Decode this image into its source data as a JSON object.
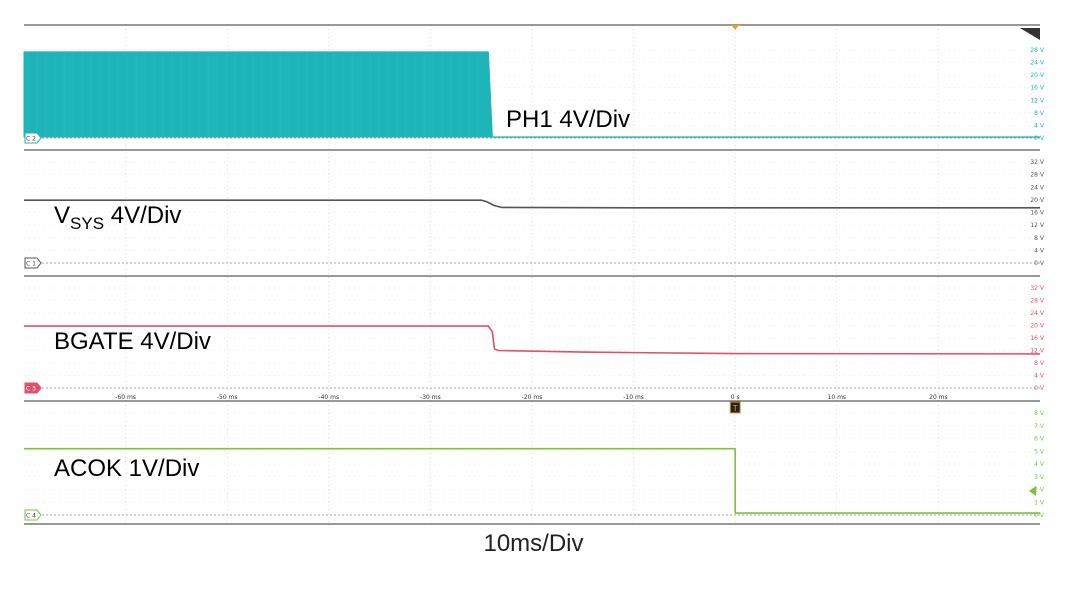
{
  "colors": {
    "c1": "#555555",
    "c2": "#1fb5b8",
    "c3": "#e0506a",
    "c4": "#7cc142",
    "trigger": "#e8a02f",
    "frame": "#333333"
  },
  "timebase_label": "10ms/Div",
  "chart_data": {
    "type": "line",
    "title": "",
    "xlabel": "10ms/Div",
    "xunit": "ms",
    "xlim": [
      -70,
      30
    ],
    "x_ticks": [
      -60,
      -50,
      -40,
      -30,
      -20,
      -10,
      0,
      10,
      20
    ],
    "x_tick_labels": [
      "-60 ms",
      "-50 ms",
      "-40 ms",
      "-30 ms",
      "-20 ms",
      "-10 ms",
      "0 s",
      "10 ms",
      "20 ms"
    ],
    "trigger_time": 0,
    "trigger_marker": "T",
    "grid": true,
    "channels": [
      {
        "id": "C2",
        "badge": "C 2",
        "label": "PH1 4V/Div",
        "label_main": "PH1 4V/Div",
        "label_sub": "",
        "color_key": "c2",
        "style": "switching",
        "ylim": [
          0,
          32
        ],
        "y_tick_values": [
          0,
          4,
          8,
          12,
          16,
          20,
          24,
          28
        ],
        "y_tick_labels": [
          "0 V",
          "4 V",
          "8 V",
          "12 V",
          "16 V",
          "20 V",
          "24 V",
          "28 V"
        ],
        "switching_high": 27.4,
        "switching_low": 0.3,
        "switching_end": -24.1,
        "points": [
          [
            -70,
            0.3
          ],
          [
            -24.1,
            0.3
          ],
          [
            -20,
            0.3
          ],
          [
            30,
            0.3
          ]
        ]
      },
      {
        "id": "C1",
        "badge": "C 1",
        "label": "VSYS 4V/Div",
        "label_main": "V",
        "label_sub": "SYS",
        "label_rest": " 4V/Div",
        "color_key": "c1",
        "style": "line",
        "ylim": [
          0,
          34
        ],
        "y_tick_values": [
          0,
          4,
          8,
          12,
          16,
          20,
          24,
          28,
          32
        ],
        "y_tick_labels": [
          "0 V",
          "4 V",
          "8 V",
          "12 V",
          "16 V",
          "20 V",
          "24 V",
          "28 V",
          "32 V"
        ],
        "points": [
          [
            -70,
            19.9
          ],
          [
            -25,
            19.9
          ],
          [
            -24.5,
            19.5
          ],
          [
            -23.7,
            18.2
          ],
          [
            -23,
            17.6
          ],
          [
            -10,
            17.5
          ],
          [
            30,
            17.5
          ]
        ]
      },
      {
        "id": "C3",
        "badge": "C 3",
        "label": "BGATE 4V/Div",
        "label_main": "BGATE 4V/Div",
        "label_sub": "",
        "color_key": "c3",
        "style": "line",
        "ylim": [
          0,
          34
        ],
        "y_tick_values": [
          0,
          4,
          8,
          12,
          16,
          20,
          24,
          28,
          32
        ],
        "y_tick_labels": [
          "0 V",
          "4 V",
          "8 V",
          "12 V",
          "16 V",
          "20 V",
          "24 V",
          "28 V",
          "32 V"
        ],
        "points": [
          [
            -70,
            19.8
          ],
          [
            -24.3,
            19.8
          ],
          [
            -23.9,
            18.0
          ],
          [
            -23.7,
            12.5
          ],
          [
            -23.3,
            12.0
          ],
          [
            -15,
            11.5
          ],
          [
            0,
            11.0
          ],
          [
            30,
            10.9
          ]
        ]
      },
      {
        "id": "C4",
        "badge": "C 4",
        "label": "ACOK 1V/Div",
        "label_main": "ACOK 1V/Div",
        "label_sub": "",
        "color_key": "c4",
        "style": "line",
        "ylim": [
          0,
          8.6
        ],
        "y_tick_values": [
          0,
          1,
          2,
          3,
          4,
          5,
          6,
          7,
          8
        ],
        "y_tick_labels": [
          "0 V",
          "1 V",
          "2 V",
          "3 V",
          "4 V",
          "5 V",
          "6 V",
          "7 V",
          "8 V"
        ],
        "points": [
          [
            -70,
            5.2
          ],
          [
            0,
            5.2
          ],
          [
            0,
            0.15
          ],
          [
            30,
            0.15
          ]
        ]
      }
    ]
  }
}
